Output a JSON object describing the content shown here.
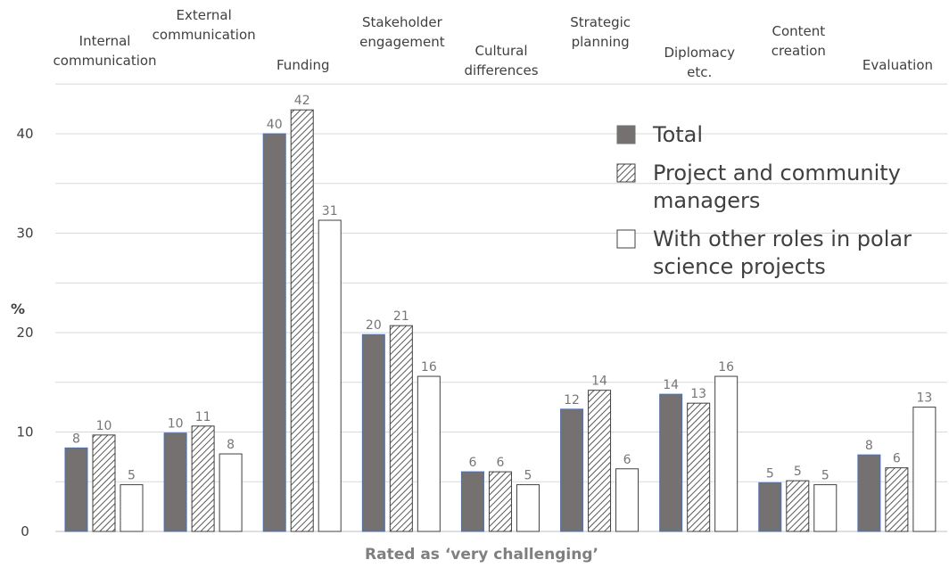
{
  "chart_data": {
    "type": "bar",
    "categories": [
      [
        "Internal",
        "communication"
      ],
      [
        "External",
        "communication"
      ],
      [
        "Funding"
      ],
      [
        "Stakeholder",
        "engagement"
      ],
      [
        "Cultural",
        "differences"
      ],
      [
        "Strategic",
        "planning"
      ],
      [
        "Diplomacy",
        "etc."
      ],
      [
        "Content",
        "creation"
      ],
      [
        "Evaluation"
      ]
    ],
    "series": [
      {
        "name": "Total",
        "values": [
          8.4,
          9.9,
          40.0,
          19.8,
          6.0,
          12.3,
          13.8,
          4.9,
          7.7
        ],
        "labels": [
          "8",
          "10",
          "40",
          "20",
          "6",
          "12",
          "14",
          "5",
          "8"
        ],
        "fill": "#767171",
        "pattern": "solid"
      },
      {
        "name": "Project and community managers",
        "values": [
          9.7,
          10.6,
          42.4,
          20.7,
          6.0,
          14.2,
          12.9,
          5.1,
          6.4
        ],
        "labels": [
          "10",
          "11",
          "42",
          "21",
          "6",
          "14",
          "13",
          "5",
          "6"
        ],
        "fill": "#ffffff",
        "pattern": "hatch"
      },
      {
        "name": "With other roles in polar science projects",
        "values": [
          4.7,
          7.8,
          31.3,
          15.6,
          4.7,
          6.3,
          15.6,
          4.7,
          12.5
        ],
        "labels": [
          "5",
          "8",
          "31",
          "16",
          "5",
          "6",
          "16",
          "5",
          "13"
        ],
        "fill": "#ffffff",
        "pattern": "none"
      }
    ],
    "y_ticks": [
      0,
      10,
      20,
      30,
      40
    ],
    "ylim": [
      0,
      45
    ],
    "ylabel": "%",
    "xlabel": "Rated as ‘very challenging’",
    "grid": true,
    "legend_position": "top-right",
    "legend_lines": [
      [
        "Total"
      ],
      [
        "Project and community",
        "managers"
      ],
      [
        "With other roles in polar",
        "science projects"
      ]
    ],
    "colors": {
      "total": "#767171",
      "bar_border": "#4472c4",
      "outline": "#404040",
      "gridline": "#d9d9d9",
      "value_text": "#767676"
    }
  }
}
